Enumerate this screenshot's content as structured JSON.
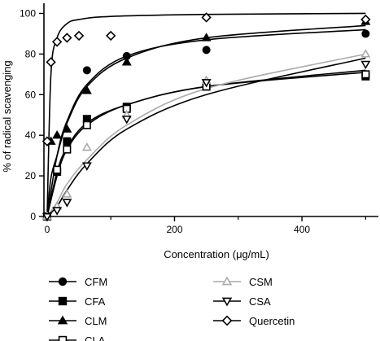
{
  "chart_data": {
    "type": "scatter",
    "title": "",
    "xlabel": "Concentration (μg/mL)",
    "ylabel": "% of radical scavenging",
    "xlim": [
      -5,
      520
    ],
    "ylim": [
      0,
      105
    ],
    "xticks": [
      0,
      200,
      400
    ],
    "yticks": [
      0,
      20,
      40,
      60,
      80,
      100
    ],
    "grid": false,
    "legend_position": "bottom",
    "series": [
      {
        "name": "CFM",
        "marker": "circle-filled",
        "color": "#000000",
        "x": [
          0,
          15.6,
          31.25,
          62.5,
          125,
          250,
          500
        ],
        "y": [
          0,
          22,
          37,
          72,
          79,
          82,
          90
        ],
        "fit": [
          0,
          30,
          47,
          65,
          79,
          87,
          92
        ]
      },
      {
        "name": "CFA",
        "marker": "square-filled",
        "color": "#000000",
        "x": [
          0,
          15.6,
          31.25,
          62.5,
          125,
          250,
          500
        ],
        "y": [
          0,
          22,
          37,
          48,
          54,
          64,
          69
        ],
        "fit": [
          0,
          22,
          34,
          46,
          55,
          64,
          71
        ]
      },
      {
        "name": "CLM",
        "marker": "triangle-filled",
        "color": "#000000",
        "x": [
          0,
          6,
          15.6,
          31.25,
          62.5,
          125,
          250,
          500
        ],
        "y": [
          0,
          37,
          40,
          43,
          62,
          76,
          88,
          96
        ],
        "fit": [
          0,
          19,
          30,
          46,
          64,
          78,
          88,
          94
        ]
      },
      {
        "name": "CLA",
        "marker": "square-open",
        "color": "#000000",
        "x": [
          0,
          15.6,
          31.25,
          62.5,
          125,
          250,
          500
        ],
        "y": [
          0,
          23,
          33,
          45,
          53,
          64,
          70
        ],
        "fit": [
          0,
          20,
          33,
          45,
          55,
          64,
          72
        ]
      },
      {
        "name": "CSM",
        "marker": "triangle-open",
        "color": "#aaaaaa",
        "x": [
          0,
          15.6,
          31.25,
          62.5,
          125,
          250,
          500
        ],
        "y": [
          0,
          5,
          11,
          34,
          50,
          67,
          80
        ],
        "fit": [
          0,
          7,
          16,
          28,
          45,
          63,
          80
        ]
      },
      {
        "name": "CSA",
        "marker": "triangle-down-open",
        "color": "#000000",
        "x": [
          0,
          15.6,
          31.25,
          62.5,
          125,
          250,
          500
        ],
        "y": [
          0,
          3,
          7,
          25,
          48,
          66,
          75
        ],
        "fit": [
          0,
          5,
          13,
          26,
          43,
          60,
          78
        ]
      },
      {
        "name": "Quercetin",
        "marker": "diamond-open",
        "color": "#000000",
        "x": [
          0,
          6,
          15.6,
          31.25,
          50,
          100,
          250,
          500
        ],
        "y": [
          37,
          76,
          86,
          88,
          89,
          89,
          98,
          97
        ],
        "fit": [
          0,
          70,
          88,
          95,
          97,
          98.5,
          99.5,
          100
        ]
      }
    ]
  }
}
